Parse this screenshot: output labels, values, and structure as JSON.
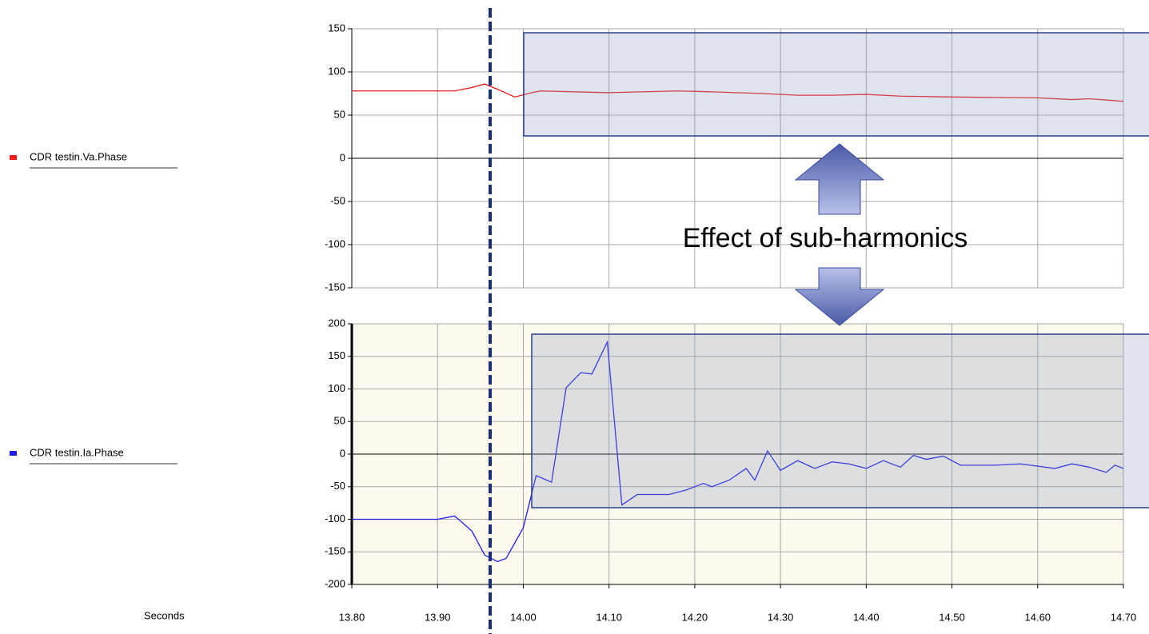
{
  "chart_data": [
    {
      "type": "line",
      "annotation": "Effect of sub-harmonics",
      "x": [
        13.8,
        13.92,
        13.94,
        13.955,
        13.97,
        13.99,
        14.01,
        14.02,
        14.1,
        14.18,
        14.22,
        14.28,
        14.32,
        14.36,
        14.4,
        14.44,
        14.5,
        14.6,
        14.64,
        14.66,
        14.7
      ],
      "series": [
        {
          "name": "CDR testin.Va.Phase",
          "color": "#ee1c1c",
          "values": [
            78,
            78,
            82,
            86,
            80,
            71,
            76,
            78,
            76,
            78,
            77,
            75,
            73,
            73,
            74,
            72,
            71,
            70,
            68,
            69,
            66
          ]
        }
      ],
      "xlim": [
        13.8,
        14.7
      ],
      "ylim": [
        -150,
        150
      ],
      "yticks": [
        150,
        100,
        50,
        0,
        -50,
        -100,
        -150
      ],
      "grid": true,
      "background": "#ffffff"
    },
    {
      "type": "line",
      "xlabel": "Seconds",
      "x": [
        13.8,
        13.9,
        13.92,
        13.94,
        13.955,
        13.97,
        13.98,
        14.0,
        14.015,
        14.033,
        14.05,
        14.067,
        14.08,
        14.098,
        14.115,
        14.133,
        14.17,
        14.19,
        14.21,
        14.22,
        14.24,
        14.26,
        14.27,
        14.285,
        14.3,
        14.32,
        14.34,
        14.36,
        14.38,
        14.4,
        14.42,
        14.44,
        14.455,
        14.47,
        14.49,
        14.51,
        14.55,
        14.58,
        14.62,
        14.64,
        14.66,
        14.68,
        14.69,
        14.7
      ],
      "series": [
        {
          "name": "CDR testin.Ia.Phase",
          "color": "#1c1cee",
          "values": [
            -100,
            -100,
            -95,
            -118,
            -155,
            -165,
            -160,
            -113,
            -33,
            -43,
            102,
            125,
            123,
            172,
            -78,
            -62,
            -62,
            -55,
            -45,
            -50,
            -40,
            -22,
            -40,
            5,
            -25,
            -10,
            -22,
            -12,
            -15,
            -22,
            -10,
            -20,
            -2,
            -8,
            -3,
            -17,
            -17,
            -15,
            -22,
            -15,
            -20,
            -28,
            -17,
            -22
          ]
        }
      ],
      "xlim": [
        13.8,
        14.7
      ],
      "xticks": [
        {
          "value": 13.8,
          "label": "13.80"
        },
        {
          "value": 13.9,
          "label": "13.90"
        },
        {
          "value": 14.0,
          "label": "14.00"
        },
        {
          "value": 14.1,
          "label": "14.10"
        },
        {
          "value": 14.2,
          "label": "14.20"
        },
        {
          "value": 14.3,
          "label": "14.30"
        },
        {
          "value": 14.4,
          "label": "14.40"
        },
        {
          "value": 14.5,
          "label": "14.50"
        },
        {
          "value": 14.6,
          "label": "14.60"
        },
        {
          "value": 14.7,
          "label": "14.70"
        }
      ],
      "ylim": [
        -200,
        200
      ],
      "yticks": [
        200,
        150,
        100,
        50,
        0,
        -50,
        -100,
        -150,
        -200
      ],
      "grid": true,
      "background": "#fdf9ee"
    }
  ]
}
